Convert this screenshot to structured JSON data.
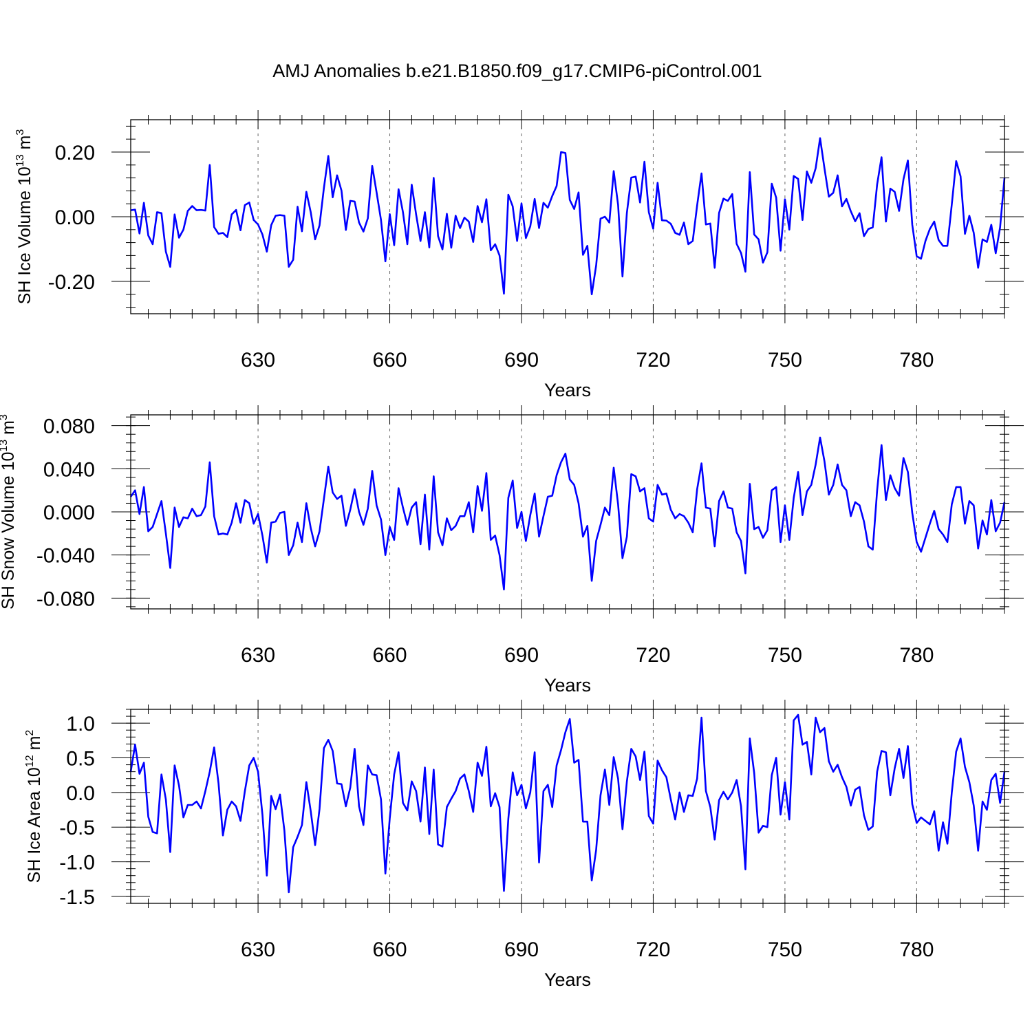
{
  "title": "AMJ Anomalies b.e21.B1850.f09_g17.CMIP6-piControl.001",
  "chart_data": [
    {
      "type": "line",
      "title": "AMJ Anomalies b.e21.B1850.f09_g17.CMIP6-piControl.001",
      "ylabel": {
        "main": "SH Ice Volume 10",
        "sup": "13",
        "tail": " m",
        "unit_sup": "3"
      },
      "xlabel": "Years",
      "xlim": [
        601,
        800
      ],
      "ylim": [
        -0.3,
        0.3
      ],
      "x_ticks": [
        630,
        660,
        690,
        720,
        750,
        780
      ],
      "x_tick_labels": [
        "630",
        "660",
        "690",
        "720",
        "750",
        "780"
      ],
      "y_ticks": [
        0.2,
        0.0,
        -0.2
      ],
      "y_tick_labels": [
        "0.20",
        "0.00",
        "-0.20"
      ],
      "line_color": "#0000ff",
      "grid": "dashed vertical lines at major x ticks",
      "series": [
        {
          "values": [
            0.02,
            0.022,
            -0.052,
            0.043,
            -0.058,
            -0.085,
            0.014,
            0.011,
            -0.108,
            -0.155,
            0.007,
            -0.065,
            -0.04,
            0.018,
            0.033,
            0.02,
            0.021,
            0.019,
            0.16,
            -0.032,
            -0.053,
            -0.05,
            -0.063,
            0.007,
            0.021,
            -0.042,
            0.036,
            0.044,
            -0.01,
            -0.024,
            -0.055,
            -0.108,
            -0.026,
            0.003,
            0.005,
            0.003,
            -0.155,
            -0.133,
            0.031,
            -0.045,
            0.077,
            0.014,
            -0.07,
            -0.027,
            0.089,
            0.188,
            0.06,
            0.128,
            0.081,
            -0.041,
            0.049,
            0.047,
            -0.018,
            -0.046,
            -0.005,
            0.157,
            0.075,
            -0.01,
            -0.138,
            0.008,
            -0.088,
            0.085,
            0.014,
            -0.085,
            0.099,
            0.007,
            -0.075,
            0.014,
            -0.095,
            0.12,
            -0.06,
            -0.101,
            0.009,
            -0.096,
            0.003,
            -0.035,
            -0.003,
            -0.015,
            -0.078,
            0.033,
            -0.017,
            0.054,
            -0.104,
            -0.085,
            -0.12,
            -0.238,
            0.068,
            0.032,
            -0.075,
            0.041,
            -0.066,
            -0.03,
            0.055,
            -0.035,
            0.043,
            0.028,
            0.064,
            0.095,
            0.2,
            0.197,
            0.052,
            0.024,
            0.075,
            -0.118,
            -0.09,
            -0.24,
            -0.151,
            -0.006,
            0.0,
            -0.018,
            0.141,
            0.037,
            -0.185,
            0.012,
            0.121,
            0.124,
            0.044,
            0.17,
            0.014,
            -0.037,
            0.105,
            -0.011,
            -0.012,
            -0.022,
            -0.05,
            -0.056,
            -0.018,
            -0.085,
            -0.075,
            0.035,
            0.134,
            -0.024,
            -0.021,
            -0.158,
            0.012,
            0.056,
            0.049,
            0.07,
            -0.084,
            -0.112,
            -0.17,
            0.138,
            -0.055,
            -0.07,
            -0.142,
            -0.11,
            0.102,
            0.059,
            -0.105,
            0.054,
            -0.04,
            0.126,
            0.117,
            -0.01,
            0.14,
            0.105,
            0.15,
            0.243,
            0.15,
            0.062,
            0.074,
            0.128,
            0.032,
            0.055,
            0.017,
            -0.014,
            0.011,
            -0.06,
            -0.038,
            -0.033,
            0.1,
            0.184,
            -0.015,
            0.087,
            0.077,
            0.018,
            0.116,
            0.174,
            -0.025,
            -0.122,
            -0.13,
            -0.075,
            -0.038,
            -0.015,
            -0.072,
            -0.09,
            -0.09,
            0.038,
            0.172,
            0.125,
            -0.053,
            0.003,
            -0.05,
            -0.158,
            -0.07,
            -0.078,
            -0.025,
            -0.113,
            -0.033,
            0.12
          ]
        }
      ]
    },
    {
      "type": "line",
      "ylabel": {
        "main": "SH Snow Volume 10",
        "sup": "13",
        "tail": " m",
        "unit_sup": "3"
      },
      "xlabel": "Years",
      "xlim": [
        601,
        800
      ],
      "ylim": [
        -0.09,
        0.09
      ],
      "x_ticks": [
        630,
        660,
        690,
        720,
        750,
        780
      ],
      "x_tick_labels": [
        "630",
        "660",
        "690",
        "720",
        "750",
        "780"
      ],
      "y_ticks": [
        0.08,
        0.04,
        0.0,
        -0.04,
        -0.08
      ],
      "y_tick_labels": [
        "0.080",
        "0.040",
        "0.000",
        "-0.040",
        "-0.080"
      ],
      "line_color": "#0000ff",
      "grid": "dashed vertical lines at major x ticks",
      "series": [
        {
          "values": [
            0.014,
            0.02,
            -0.002,
            0.023,
            -0.018,
            -0.014,
            -0.002,
            0.01,
            -0.02,
            -0.052,
            0.004,
            -0.014,
            -0.005,
            -0.006,
            0.003,
            -0.004,
            -0.003,
            0.005,
            0.046,
            -0.004,
            -0.021,
            -0.02,
            -0.021,
            -0.01,
            0.008,
            -0.01,
            0.011,
            0.008,
            -0.011,
            -0.002,
            -0.022,
            -0.047,
            -0.01,
            -0.009,
            -0.001,
            0.0,
            -0.04,
            -0.031,
            -0.01,
            -0.028,
            0.008,
            -0.015,
            -0.032,
            -0.018,
            0.012,
            0.042,
            0.018,
            0.012,
            0.015,
            -0.013,
            0.002,
            0.021,
            0.0,
            -0.012,
            0.003,
            0.038,
            0.006,
            -0.007,
            -0.04,
            -0.014,
            -0.026,
            0.022,
            0.004,
            -0.012,
            0.004,
            0.009,
            -0.03,
            0.016,
            -0.035,
            0.033,
            -0.019,
            -0.031,
            -0.006,
            -0.017,
            -0.013,
            -0.004,
            -0.004,
            0.009,
            -0.019,
            0.024,
            0.001,
            0.036,
            -0.026,
            -0.022,
            -0.04,
            -0.072,
            0.013,
            0.029,
            -0.015,
            0.0,
            -0.027,
            -0.003,
            0.017,
            -0.023,
            -0.004,
            0.014,
            0.015,
            0.034,
            0.046,
            0.054,
            0.03,
            0.025,
            0.008,
            -0.023,
            -0.013,
            -0.064,
            -0.027,
            -0.012,
            0.004,
            -0.003,
            0.041,
            0.007,
            -0.043,
            -0.023,
            0.035,
            0.033,
            0.019,
            0.022,
            -0.006,
            -0.009,
            0.025,
            0.016,
            0.017,
            0.002,
            -0.006,
            -0.002,
            -0.004,
            -0.01,
            -0.019,
            0.021,
            0.045,
            0.004,
            0.003,
            -0.032,
            0.01,
            0.019,
            0.004,
            0.003,
            -0.019,
            -0.027,
            -0.057,
            0.026,
            -0.016,
            -0.014,
            -0.024,
            -0.017,
            0.02,
            0.023,
            -0.028,
            0.006,
            -0.026,
            0.013,
            0.037,
            -0.003,
            0.019,
            0.025,
            0.044,
            0.069,
            0.047,
            0.016,
            0.025,
            0.044,
            0.025,
            0.02,
            -0.004,
            0.009,
            0.006,
            -0.009,
            -0.032,
            -0.035,
            0.02,
            0.062,
            0.011,
            0.034,
            0.022,
            0.015,
            0.05,
            0.037,
            -0.001,
            -0.028,
            -0.037,
            -0.024,
            -0.011,
            0.001,
            -0.016,
            -0.021,
            -0.028,
            0.007,
            0.023,
            0.023,
            -0.011,
            0.01,
            0.006,
            -0.034,
            -0.008,
            -0.021,
            0.011,
            -0.018,
            -0.01,
            0.009
          ]
        }
      ]
    },
    {
      "type": "line",
      "ylabel": {
        "main": "SH Ice Area 10",
        "sup": "12",
        "tail": " m",
        "unit_sup": "2"
      },
      "xlabel": "Years",
      "xlim": [
        601,
        800
      ],
      "ylim": [
        -1.6,
        1.2
      ],
      "x_ticks": [
        630,
        660,
        690,
        720,
        750,
        780
      ],
      "x_tick_labels": [
        "630",
        "660",
        "690",
        "720",
        "750",
        "780"
      ],
      "y_ticks": [
        1.0,
        0.5,
        0.0,
        -0.5,
        -1.0,
        -1.5
      ],
      "y_tick_labels": [
        "1.0",
        "0.5",
        "0.0",
        "-0.5",
        "-1.0",
        "-1.5"
      ],
      "line_color": "#0000ff",
      "grid": "dashed vertical lines at major x ticks",
      "series": [
        {
          "values": [
            0.3,
            0.69,
            0.27,
            0.43,
            -0.35,
            -0.57,
            -0.59,
            0.26,
            -0.1,
            -0.86,
            0.39,
            0.1,
            -0.36,
            -0.18,
            -0.18,
            -0.13,
            -0.23,
            0.02,
            0.3,
            0.65,
            0.13,
            -0.62,
            -0.25,
            -0.13,
            -0.2,
            -0.41,
            0.02,
            0.39,
            0.5,
            0.3,
            -0.32,
            -1.2,
            -0.05,
            -0.24,
            -0.03,
            -0.55,
            -1.44,
            -0.79,
            -0.64,
            -0.47,
            0.15,
            -0.27,
            -0.76,
            -0.24,
            0.64,
            0.76,
            0.6,
            0.13,
            0.12,
            -0.2,
            0.07,
            0.63,
            -0.2,
            -0.47,
            0.39,
            0.26,
            0.25,
            -0.1,
            -1.17,
            -0.37,
            0.26,
            0.58,
            -0.15,
            -0.26,
            0.16,
            0.02,
            -0.42,
            0.36,
            -0.6,
            0.33,
            -0.75,
            -0.78,
            -0.21,
            -0.09,
            0.02,
            0.2,
            0.26,
            0.02,
            -0.28,
            0.43,
            0.24,
            0.66,
            -0.2,
            -0.01,
            -0.21,
            -1.42,
            -0.38,
            0.29,
            -0.04,
            0.11,
            -0.23,
            0.0,
            0.58,
            -1.01,
            0.02,
            0.11,
            -0.21,
            0.39,
            0.61,
            0.87,
            1.06,
            0.43,
            0.47,
            -0.42,
            -0.42,
            -1.27,
            -0.83,
            -0.04,
            0.33,
            -0.18,
            0.51,
            0.2,
            -0.53,
            0.16,
            0.63,
            0.52,
            0.18,
            0.59,
            -0.34,
            -0.45,
            0.46,
            0.32,
            0.22,
            -0.1,
            -0.39,
            0.0,
            -0.28,
            -0.04,
            -0.05,
            0.2,
            1.08,
            0.02,
            -0.21,
            -0.68,
            -0.11,
            0.01,
            -0.1,
            0.0,
            0.18,
            -0.2,
            -1.11,
            0.78,
            0.28,
            -0.58,
            -0.48,
            -0.5,
            0.25,
            0.5,
            -0.32,
            0.15,
            -0.39,
            1.04,
            1.12,
            0.69,
            0.73,
            0.26,
            1.08,
            0.87,
            0.93,
            0.45,
            0.3,
            0.4,
            0.22,
            0.08,
            -0.19,
            0.04,
            0.08,
            -0.33,
            -0.54,
            -0.49,
            0.3,
            0.6,
            0.58,
            -0.04,
            0.35,
            0.63,
            0.21,
            0.67,
            -0.17,
            -0.44,
            -0.36,
            -0.41,
            -0.46,
            -0.27,
            -0.84,
            -0.43,
            -0.74,
            0.0,
            0.59,
            0.78,
            0.37,
            0.15,
            -0.19,
            -0.84,
            -0.13,
            -0.25,
            0.18,
            0.27,
            -0.15,
            0.3
          ]
        }
      ]
    }
  ]
}
